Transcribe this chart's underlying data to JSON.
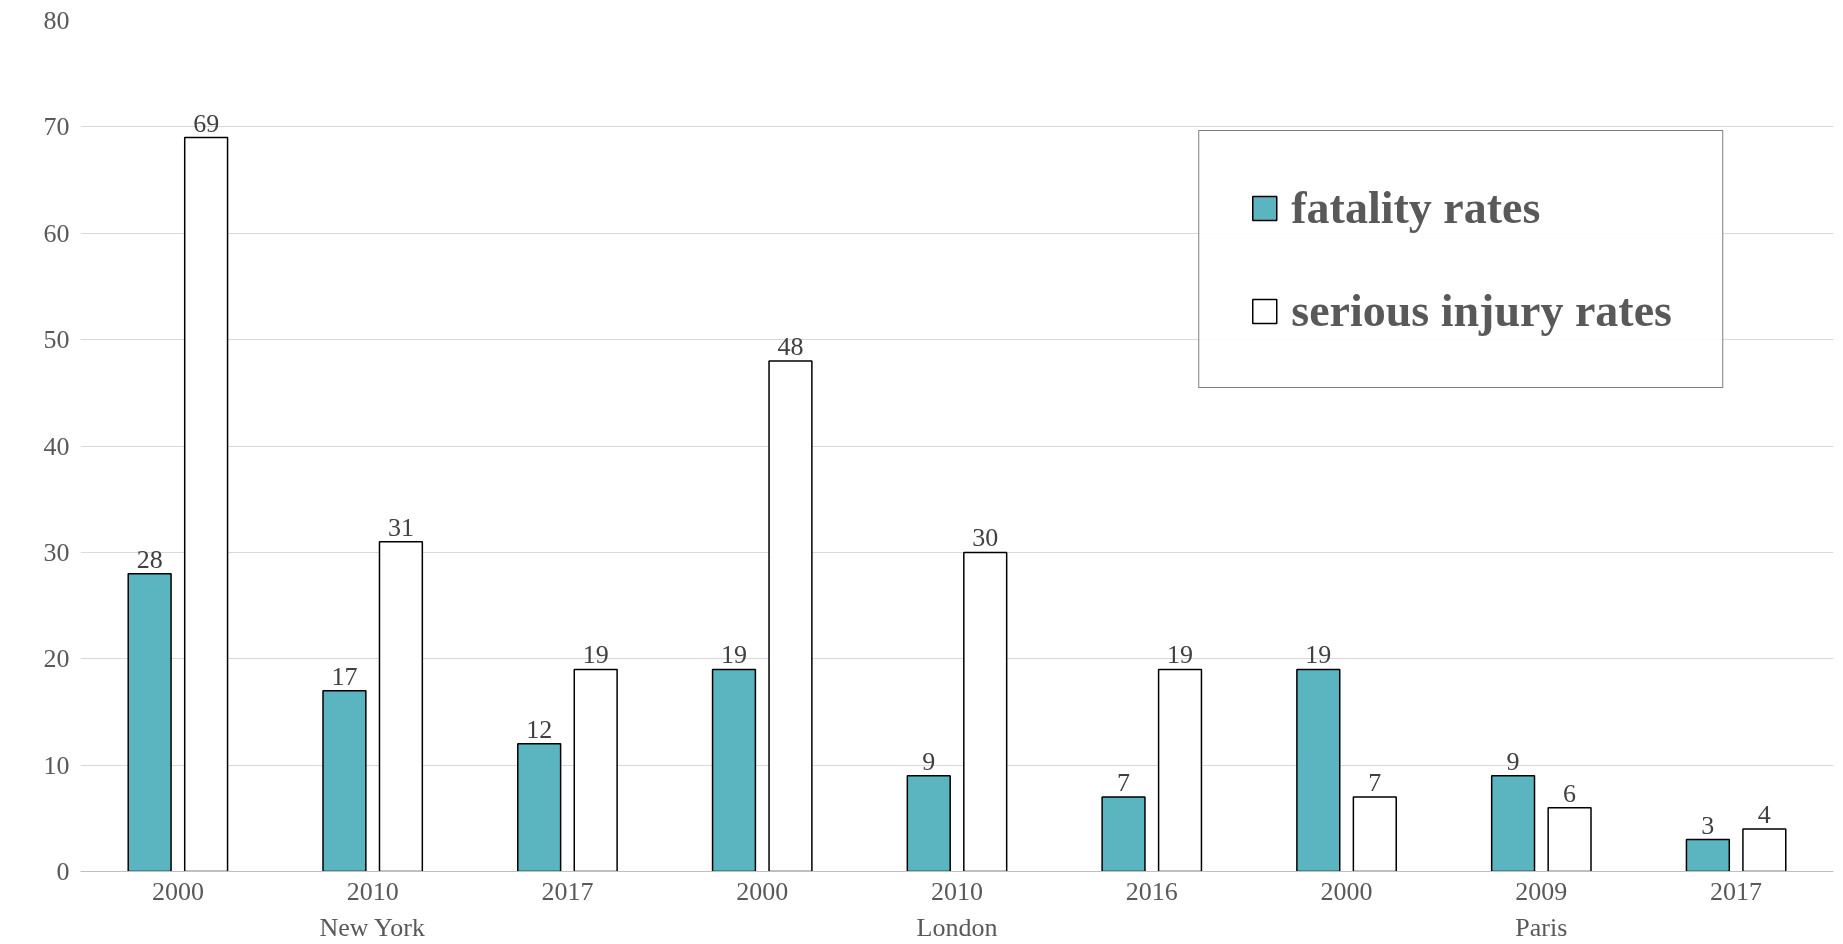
{
  "chart_data": {
    "type": "bar",
    "categories": [
      "2000",
      "2010",
      "2017",
      "2000",
      "2010",
      "2016",
      "2000",
      "2009",
      "2017"
    ],
    "annotations": [
      "New York",
      "London",
      "Paris"
    ],
    "series": [
      {
        "name": "fatality rates",
        "color": "#5bb5c0",
        "values": [
          28,
          17,
          12,
          19,
          9,
          7,
          19,
          9,
          3
        ]
      },
      {
        "name": "serious injury rates",
        "color": "#ffffff",
        "values": [
          69,
          31,
          19,
          48,
          30,
          19,
          7,
          6,
          4
        ]
      }
    ],
    "ylim": [
      0,
      80
    ],
    "yticks": [
      0,
      10,
      20,
      30,
      40,
      50,
      60,
      70,
      80
    ],
    "grid": "y",
    "legend": "top right",
    "data_labels": true
  }
}
